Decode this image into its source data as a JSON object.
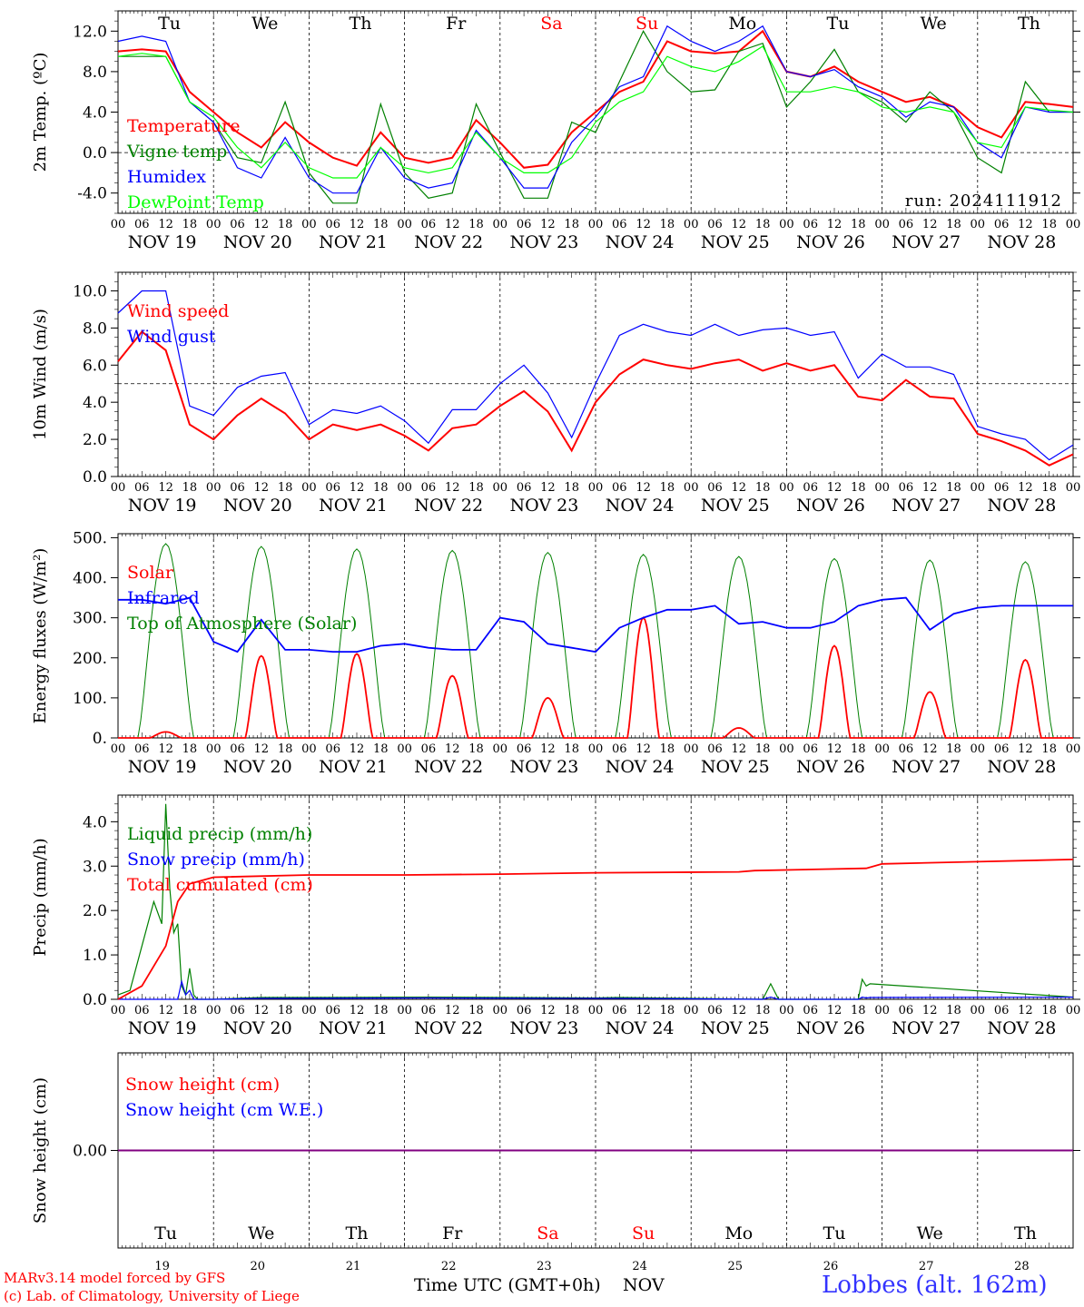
{
  "days": [
    "NOV 19",
    "NOV 20",
    "NOV 21",
    "NOV 22",
    "NOV 23",
    "NOV 24",
    "NOV 25",
    "NOV 26",
    "NOV 27",
    "NOV 28"
  ],
  "weekdays": [
    "Tu",
    "We",
    "Th",
    "Fr",
    "Sa",
    "Su",
    "Mo",
    "Tu",
    "We",
    "Th"
  ],
  "weekday_colors": [
    "#000000",
    "#000000",
    "#000000",
    "#000000",
    "#ff0000",
    "#ff0000",
    "#000000",
    "#000000",
    "#000000",
    "#000000"
  ],
  "hour_ticks": [
    "00",
    "06",
    "12",
    "18"
  ],
  "day_numbers": [
    "19",
    "20",
    "21",
    "22",
    "23",
    "24",
    "25",
    "26",
    "27",
    "28"
  ],
  "colors": {
    "red": "#ff0000",
    "green": "#008000",
    "blue": "#0000ff",
    "light_green": "#00ff00",
    "purple": "#800080",
    "footer_blue": "#3333ff"
  },
  "footer": {
    "model": "MARv3.14 model forced by GFS",
    "copyright": "(c) Lab. of Climatology, University of Liege",
    "time_label": "Time UTC (GMT+0h)",
    "month": "NOV",
    "station": "Lobbes (alt. 162m)"
  },
  "chart_data": [
    {
      "type": "line",
      "ylabel": "2m Temp. (ºC)",
      "ylim": [
        -6,
        14
      ],
      "yticks": [
        "-4.0",
        "0.0",
        "4.0",
        "8.0",
        "12.0"
      ],
      "ytick_values": [
        -4,
        0,
        4,
        8,
        12
      ],
      "ref_line": 0,
      "annotation": "run: 2024111912",
      "x_hours": [
        0,
        6,
        12,
        18,
        24,
        30,
        36,
        42,
        48,
        54,
        60,
        66,
        72,
        78,
        84,
        90,
        96,
        102,
        108,
        114,
        120,
        126,
        132,
        138,
        144,
        150,
        156,
        162,
        168,
        174,
        180,
        186,
        192,
        198,
        204,
        210,
        216,
        222,
        228,
        234,
        240
      ],
      "series": [
        {
          "name": "Temperature",
          "color": "#ff0000",
          "values": [
            10,
            10.2,
            10,
            6,
            4,
            2,
            0.5,
            3,
            1,
            -0.5,
            -1.3,
            2,
            -0.5,
            -1,
            -0.5,
            3.2,
            1,
            -1.5,
            -1.2,
            2,
            4,
            6,
            7,
            11,
            10,
            9.8,
            10,
            12,
            8,
            7.5,
            8.5,
            7,
            6,
            5,
            5.5,
            4.5,
            2.5,
            1.5,
            5,
            4.8,
            4.5
          ]
        },
        {
          "name": "Vigne temp",
          "color": "#008000",
          "values": [
            9.5,
            9.5,
            9.5,
            5,
            3,
            -0.5,
            -1,
            5,
            -2,
            -5,
            -5,
            4.8,
            -2,
            -4.5,
            -4,
            4.8,
            0,
            -4.5,
            -4.5,
            3,
            2,
            7,
            12,
            8,
            6,
            6.2,
            10,
            10.8,
            4.5,
            7,
            10.2,
            6,
            5,
            3,
            6,
            4,
            -0.5,
            -2,
            7,
            4,
            4
          ]
        },
        {
          "name": "Humidex",
          "color": "#0000ff",
          "values": [
            11,
            11.5,
            11,
            5,
            3,
            -1.5,
            -2.5,
            1.5,
            -2.5,
            -4,
            -4,
            0.5,
            -2.5,
            -3.5,
            -3,
            2.2,
            -0.5,
            -3.5,
            -3.5,
            1,
            3.5,
            6.5,
            7.5,
            12.5,
            11,
            10,
            11,
            12.5,
            8,
            7.5,
            8.2,
            6.5,
            5.5,
            3.5,
            5,
            4.5,
            1,
            -0.5,
            4.5,
            4,
            4
          ]
        },
        {
          "name": "DewPoint Temp",
          "color": "#00ff00",
          "values": [
            9.5,
            9.8,
            9.5,
            5,
            3.5,
            0.5,
            -1.5,
            1,
            -1.5,
            -2.5,
            -2.5,
            0.5,
            -1.5,
            -2,
            -1.5,
            2,
            -0.5,
            -2,
            -2,
            -0.5,
            3,
            5,
            6,
            9.5,
            8.5,
            8,
            9,
            10.5,
            6,
            6,
            6.5,
            6,
            4.5,
            4,
            4.5,
            4,
            1,
            0.5,
            4.5,
            4.2,
            4
          ]
        }
      ]
    },
    {
      "type": "line",
      "ylabel": "10m Wind (m/s)",
      "ylim": [
        0,
        11
      ],
      "yticks": [
        "0.0",
        "2.0",
        "4.0",
        "6.0",
        "8.0",
        "10.0"
      ],
      "ytick_values": [
        0,
        2,
        4,
        6,
        8,
        10
      ],
      "ref_line": 5,
      "x_hours": [
        0,
        6,
        12,
        18,
        24,
        30,
        36,
        42,
        48,
        54,
        60,
        66,
        72,
        78,
        84,
        90,
        96,
        102,
        108,
        114,
        120,
        126,
        132,
        138,
        144,
        150,
        156,
        162,
        168,
        174,
        180,
        186,
        192,
        198,
        204,
        210,
        216,
        222,
        228,
        234,
        240
      ],
      "series": [
        {
          "name": "Wind speed",
          "color": "#ff0000",
          "values": [
            6.2,
            7.8,
            6.8,
            2.8,
            2,
            3.3,
            4.2,
            3.4,
            2,
            2.8,
            2.5,
            2.8,
            2.2,
            1.4,
            2.6,
            2.8,
            3.8,
            4.6,
            3.5,
            1.4,
            4,
            5.5,
            6.3,
            6,
            5.8,
            6.1,
            6.3,
            5.7,
            6.1,
            5.7,
            6,
            4.3,
            4.1,
            5.2,
            4.3,
            4.2,
            2.3,
            1.9,
            1.4,
            0.6,
            1.2
          ]
        },
        {
          "name": "Wind gust",
          "color": "#0000ff",
          "values": [
            8.8,
            10,
            10,
            3.8,
            3.3,
            4.8,
            5.4,
            5.6,
            2.8,
            3.6,
            3.4,
            3.8,
            3,
            1.8,
            3.6,
            3.6,
            5,
            6,
            4.5,
            2.1,
            5,
            7.6,
            8.2,
            7.8,
            7.6,
            8.2,
            7.6,
            7.9,
            8,
            7.6,
            7.8,
            5.3,
            6.6,
            5.9,
            5.9,
            5.5,
            2.7,
            2.3,
            2,
            0.9,
            1.7
          ]
        }
      ]
    },
    {
      "type": "line",
      "ylabel": "Energy fluxes (W/m²)",
      "ylim": [
        0,
        510
      ],
      "yticks": [
        "0.",
        "100.",
        "200.",
        "300.",
        "400.",
        "500."
      ],
      "ytick_values": [
        0,
        100,
        200,
        300,
        400,
        500
      ],
      "x_hours": [
        0,
        6,
        12,
        18,
        24,
        30,
        36,
        42,
        48,
        54,
        60,
        66,
        72,
        78,
        84,
        90,
        96,
        102,
        108,
        114,
        120,
        126,
        132,
        138,
        144,
        150,
        156,
        162,
        168,
        174,
        180,
        186,
        192,
        198,
        204,
        210,
        216,
        222,
        228,
        234,
        240
      ],
      "infrared_values": [
        345,
        345,
        335,
        350,
        240,
        215,
        295,
        220,
        220,
        215,
        215,
        230,
        235,
        225,
        220,
        220,
        300,
        290,
        235,
        225,
        215,
        275,
        300,
        320,
        320,
        330,
        285,
        290,
        275,
        275,
        290,
        330,
        345,
        350,
        270,
        310,
        325,
        330,
        330,
        330,
        330
      ],
      "series": [
        {
          "name": "Solar",
          "color": "#ff0000",
          "peaks": [
            15,
            205,
            210,
            155,
            100,
            300,
            25,
            230,
            115,
            195
          ]
        },
        {
          "name": "Infrared",
          "color": "#0000ff"
        },
        {
          "name": "Top of Atmosphere (Solar)",
          "color": "#008000",
          "peaks": [
            485,
            478,
            472,
            468,
            463,
            458,
            453,
            448,
            444,
            440
          ]
        }
      ]
    },
    {
      "type": "line",
      "ylabel": "Precip (mm/h)",
      "ylim": [
        0,
        4.6
      ],
      "yticks": [
        "0.0",
        "1.0",
        "2.0",
        "3.0",
        "4.0"
      ],
      "ytick_values": [
        0,
        1,
        2,
        3,
        4
      ],
      "x_hours": [
        0,
        3,
        6,
        9,
        11,
        12,
        13,
        14,
        15,
        16,
        17,
        18,
        19,
        20,
        21,
        24,
        36,
        78,
        120,
        126,
        162,
        164,
        166,
        186,
        187,
        188,
        189,
        240
      ],
      "series": [
        {
          "name": "Liquid precip (mm/h)",
          "color": "#008000",
          "values": [
            0.1,
            0.2,
            1.2,
            2.2,
            1.7,
            4.4,
            2.5,
            1.5,
            1.7,
            0.3,
            0.1,
            0.7,
            0.1,
            0,
            0,
            0,
            0.04,
            0.05,
            0.03,
            0.04,
            0,
            0.35,
            0,
            0,
            0.45,
            0.3,
            0.35,
            0.05
          ]
        },
        {
          "name": "Snow precip (mm/h)",
          "color": "#0000ff",
          "values": [
            0,
            0,
            0,
            0,
            0,
            0,
            0,
            0,
            0,
            0.4,
            0.1,
            0.2,
            0,
            0,
            0,
            0,
            0.02,
            0.03,
            0.02,
            0.02,
            0,
            0.05,
            0,
            0,
            0.05,
            0.03,
            0.04,
            0.05
          ]
        },
        {
          "name": "Total cumulated (cm)",
          "color": "#ff0000",
          "cumulative": [
            [
              0,
              0
            ],
            [
              6,
              0.3
            ],
            [
              12,
              1.2
            ],
            [
              15,
              2.2
            ],
            [
              18,
              2.6
            ],
            [
              24,
              2.75
            ],
            [
              48,
              2.8
            ],
            [
              72,
              2.8
            ],
            [
              96,
              2.82
            ],
            [
              120,
              2.85
            ],
            [
              156,
              2.87
            ],
            [
              160,
              2.9
            ],
            [
              188,
              2.95
            ],
            [
              192,
              3.05
            ],
            [
              216,
              3.1
            ],
            [
              240,
              3.15
            ]
          ]
        }
      ]
    },
    {
      "type": "line",
      "ylabel": "Snow height (cm)",
      "ylim": [
        -1,
        1
      ],
      "yticks": [
        "0.00"
      ],
      "ytick_values": [
        0
      ],
      "series": [
        {
          "name": "Snow height (cm)",
          "color": "#ff0000",
          "values": [
            0,
            0
          ]
        },
        {
          "name": "Snow height (cm W.E.)",
          "color": "#0000ff",
          "values": [
            0,
            0
          ]
        }
      ]
    }
  ]
}
